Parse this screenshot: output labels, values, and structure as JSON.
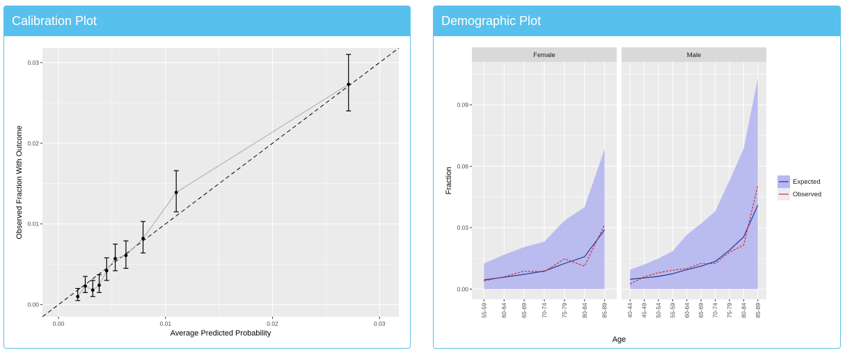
{
  "panels": {
    "calibration_title": "Calibration Plot",
    "demographic_title": "Demographic Plot"
  },
  "colors": {
    "header": "#58c0ec",
    "plot_bg": "#ebebeb",
    "expected": "#2b3f9e",
    "observed": "#d62728",
    "ribbon": "#b7b8ef"
  },
  "chart_data": [
    {
      "type": "scatter",
      "title": "",
      "xlabel": "Average Predicted Probability",
      "ylabel": "Observed Fraction With Outcome",
      "xlim": [
        -0.0015,
        0.0318
      ],
      "ylim": [
        -0.0015,
        0.0318
      ],
      "x_ticks": [
        "0.00",
        "0.01",
        "0.02",
        "0.03"
      ],
      "y_ticks": [
        "0.00",
        "0.01",
        "0.02",
        "0.03"
      ],
      "grid": true,
      "reference_line": "dashed y = x",
      "points": [
        {
          "x": 0.0018,
          "y": 0.001,
          "lo": 0.0005,
          "hi": 0.002
        },
        {
          "x": 0.0025,
          "y": 0.0023,
          "lo": 0.0015,
          "hi": 0.0035
        },
        {
          "x": 0.0032,
          "y": 0.0018,
          "lo": 0.001,
          "hi": 0.003
        },
        {
          "x": 0.0038,
          "y": 0.0024,
          "lo": 0.0015,
          "hi": 0.0037
        },
        {
          "x": 0.0045,
          "y": 0.0042,
          "lo": 0.003,
          "hi": 0.0058
        },
        {
          "x": 0.0053,
          "y": 0.0057,
          "lo": 0.0042,
          "hi": 0.0075
        },
        {
          "x": 0.0063,
          "y": 0.0061,
          "lo": 0.0045,
          "hi": 0.0079
        },
        {
          "x": 0.0079,
          "y": 0.0082,
          "lo": 0.0064,
          "hi": 0.0103
        },
        {
          "x": 0.011,
          "y": 0.0139,
          "lo": 0.0115,
          "hi": 0.0166
        },
        {
          "x": 0.0271,
          "y": 0.0273,
          "lo": 0.024,
          "hi": 0.031
        }
      ]
    },
    {
      "type": "line",
      "title": "",
      "xlabel": "Age",
      "ylabel": "Fraction",
      "ylim": [
        -0.005,
        0.111
      ],
      "y_ticks": [
        "0.00",
        "0.03",
        "0.06",
        "0.09"
      ],
      "legend": [
        "Expected",
        "Observed"
      ],
      "legend_position": "right",
      "facets": [
        {
          "name": "Female",
          "categories": [
            "55-59",
            "60-64",
            "65-69",
            "70-74",
            "75-79",
            "80-84",
            "85-89"
          ],
          "expected": [
            0.0045,
            0.0058,
            0.0072,
            0.0088,
            0.0125,
            0.0158,
            0.029
          ],
          "observed": [
            0.004,
            0.006,
            0.0088,
            0.0085,
            0.0148,
            0.0112,
            0.0315
          ],
          "ribbon_upper": [
            0.0125,
            0.0168,
            0.0205,
            0.0232,
            0.0335,
            0.04,
            0.0685
          ],
          "ribbon_lower": [
            0.0,
            0.0,
            0.0,
            0.0,
            0.0,
            0.0,
            0.0
          ]
        },
        {
          "name": "Male",
          "categories": [
            "40-44",
            "45-49",
            "50-54",
            "55-59",
            "60-64",
            "65-69",
            "70-74",
            "75-79",
            "80-84",
            "85-89"
          ],
          "expected": [
            0.0048,
            0.0055,
            0.0062,
            0.0075,
            0.0095,
            0.0112,
            0.0135,
            0.019,
            0.0255,
            0.041
          ],
          "observed": [
            0.0025,
            0.006,
            0.008,
            0.0092,
            0.01,
            0.0125,
            0.0125,
            0.018,
            0.0215,
            0.0505
          ],
          "ribbon_upper": [
            0.0095,
            0.012,
            0.015,
            0.0185,
            0.0265,
            0.032,
            0.038,
            0.053,
            0.0685,
            0.103
          ],
          "ribbon_lower": [
            0.0,
            0.0,
            0.0,
            0.0,
            0.0,
            0.0,
            0.0,
            0.0,
            0.0,
            0.0
          ]
        }
      ]
    }
  ]
}
